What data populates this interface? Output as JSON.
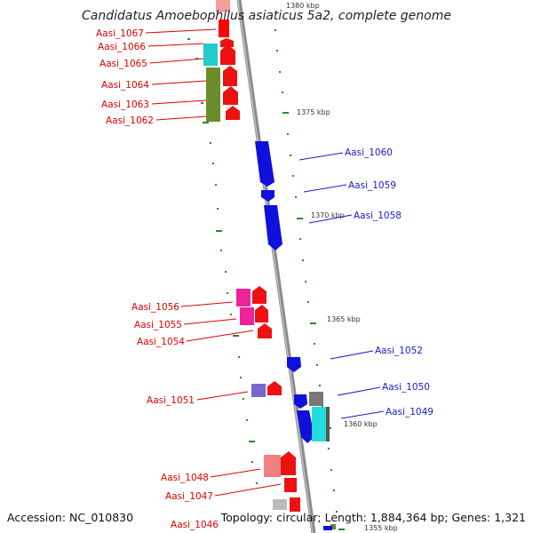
{
  "title": "Candidatus Amoebophilus asiaticus 5a2, complete genome",
  "footer": {
    "accession": "Accession: NC_010830",
    "topology": "Topology: circular; Length: 1,884,364 bp; Genes: 1,321"
  },
  "colors": {
    "forward": "#cc0000",
    "reverse": "#1a1acc"
  },
  "scale_labels": [
    "1380 kbp",
    "1375 kbp",
    "1370 kbp",
    "1365 kbp",
    "1360 kbp",
    "1355 kbp"
  ],
  "genes_left": [
    "Aasi_1067",
    "Aasi_1066",
    "Aasi_1065",
    "Aasi_1064",
    "Aasi_1063",
    "Aasi_1062",
    "Aasi_1056",
    "Aasi_1055",
    "Aasi_1054",
    "Aasi_1051",
    "Aasi_1048",
    "Aasi_1047",
    "Aasi_1046"
  ],
  "genes_right": [
    "Aasi_1060",
    "Aasi_1059",
    "Aasi_1058",
    "Aasi_1052",
    "Aasi_1050",
    "Aasi_1049"
  ]
}
